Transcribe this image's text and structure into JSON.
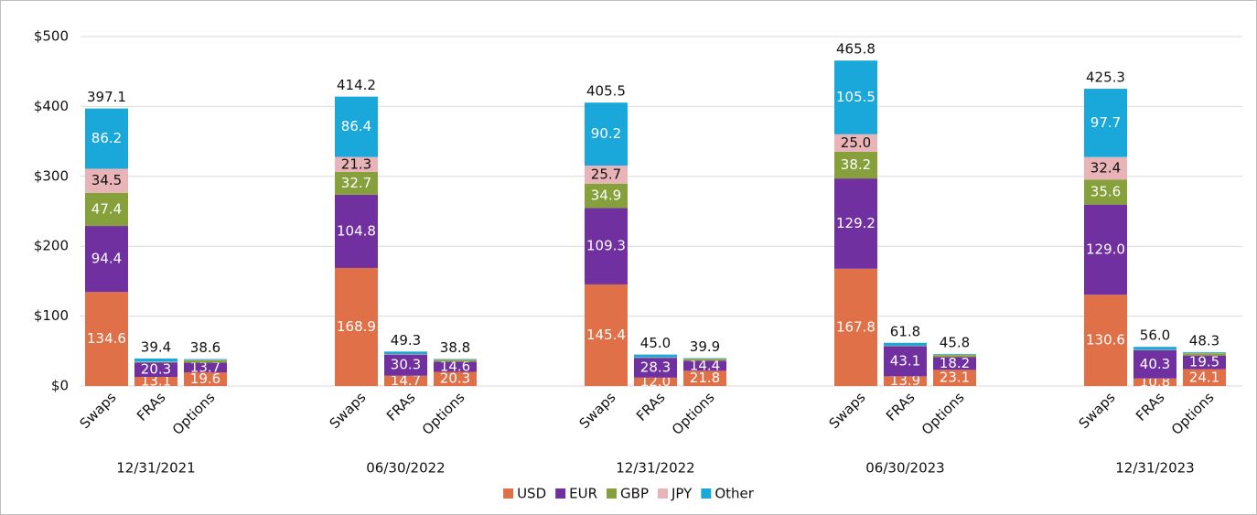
{
  "chart_data": {
    "type": "bar",
    "stacked": true,
    "groups": [
      "12/31/2021",
      "06/30/2022",
      "12/31/2022",
      "06/30/2023",
      "12/31/2023"
    ],
    "categories": [
      "Swaps",
      "FRAs",
      "Options",
      "Swaps",
      "FRAs",
      "Options",
      "Swaps",
      "FRAs",
      "Options",
      "Swaps",
      "FRAs",
      "Options",
      "Swaps",
      "FRAs",
      "Options"
    ],
    "series": [
      {
        "name": "USD",
        "color": "#e07048",
        "label_color": "#ffffff",
        "values": [
          134.6,
          13.1,
          19.6,
          168.9,
          14.7,
          20.3,
          145.4,
          12.0,
          21.8,
          167.8,
          13.9,
          23.1,
          130.6,
          10.8,
          24.1
        ],
        "value_labels": [
          "134.6",
          "13.1",
          "19.6",
          "168.9",
          "14.7",
          "20.3",
          "145.4",
          "12.0",
          "21.8",
          "167.8",
          "13.9",
          "23.1",
          "130.6",
          "10.8",
          "24.1"
        ]
      },
      {
        "name": "EUR",
        "color": "#7030a0",
        "label_color": "#ffffff",
        "values": [
          94.4,
          20.3,
          13.7,
          104.8,
          30.3,
          14.6,
          109.3,
          28.3,
          14.4,
          129.2,
          43.1,
          18.2,
          129.0,
          40.3,
          19.5
        ],
        "value_labels": [
          "94.4",
          "20.3",
          "13.7",
          "104.8",
          "30.3",
          "14.6",
          "109.3",
          "28.3",
          "14.4",
          "129.2",
          "43.1",
          "18.2",
          "129.0",
          "40.3",
          "19.5"
        ]
      },
      {
        "name": "GBP",
        "color": "#86a03c",
        "label_color": "#ffffff",
        "values": [
          47.4,
          0.8,
          3.5,
          32.7,
          0.5,
          2.8,
          34.9,
          0.4,
          2.7,
          38.2,
          0.4,
          3.0,
          35.6,
          0.4,
          3.2
        ],
        "value_labels": [
          "47.4",
          null,
          null,
          "32.7",
          null,
          null,
          "34.9",
          null,
          null,
          "38.2",
          null,
          null,
          "35.6",
          null,
          null
        ]
      },
      {
        "name": "JPY",
        "color": "#e8b4b8",
        "label_color": "#111111",
        "values": [
          34.5,
          0.6,
          0.6,
          21.3,
          0.3,
          0.4,
          25.7,
          0.3,
          0.3,
          25.0,
          0.3,
          0.5,
          32.4,
          0.3,
          0.4
        ],
        "value_labels": [
          "34.5",
          null,
          null,
          "21.3",
          null,
          null,
          "25.7",
          null,
          null,
          "25.0",
          null,
          null,
          "32.4",
          null,
          null
        ]
      },
      {
        "name": "Other",
        "color": "#1aa7d9",
        "label_color": "#ffffff",
        "values": [
          86.2,
          4.6,
          1.2,
          86.4,
          3.5,
          0.7,
          90.2,
          4.0,
          0.7,
          105.5,
          4.1,
          1.0,
          97.7,
          4.2,
          1.1
        ],
        "value_labels": [
          "86.2",
          null,
          null,
          "86.4",
          null,
          null,
          "90.2",
          null,
          null,
          "105.5",
          null,
          null,
          "97.7",
          null,
          null
        ]
      }
    ],
    "totals": [
      397.1,
      39.4,
      38.6,
      414.2,
      49.3,
      38.8,
      405.5,
      45.0,
      39.9,
      465.8,
      61.8,
      45.8,
      425.3,
      56.0,
      48.3
    ],
    "total_labels": [
      "397.1",
      "39.4",
      "38.6",
      "414.2",
      "49.3",
      "38.8",
      "405.5",
      "45.0",
      "39.9",
      "465.8",
      "61.8",
      "45.8",
      "425.3",
      "56.0",
      "48.3"
    ],
    "ylim": [
      0,
      500
    ],
    "yticks": [
      {
        "value": 0,
        "label": "$0"
      },
      {
        "value": 100,
        "label": "$100"
      },
      {
        "value": 200,
        "label": "$200"
      },
      {
        "value": 300,
        "label": "$300"
      },
      {
        "value": 400,
        "label": "$400"
      },
      {
        "value": 500,
        "label": "$500"
      }
    ],
    "grid": true,
    "legend": "bottom"
  }
}
